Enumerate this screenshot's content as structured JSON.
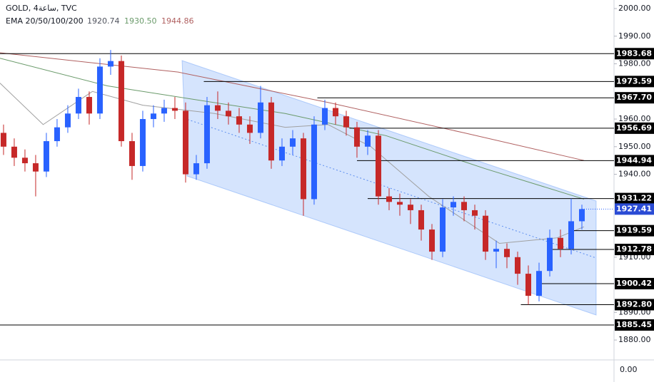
{
  "chart_data": {
    "type": "candlestick",
    "symbol_title": "GOLD, 4ساعة, TVC",
    "indicator": "EMA 20/50/100/200",
    "xlim": [
      -0.33,
      57
    ],
    "ylim": [
      1872.8,
      2003.1
    ],
    "yticks": [
      {
        "value": 2000,
        "label": "2000.00"
      },
      {
        "value": 1990,
        "label": "1990.00"
      },
      {
        "value": 1980,
        "label": "1980.00"
      },
      {
        "value": 1960,
        "label": "1960.00"
      },
      {
        "value": 1950,
        "label": "1950.00"
      },
      {
        "value": 1940,
        "label": "1940.00"
      },
      {
        "value": 1910,
        "label": "1910.00"
      },
      {
        "value": 1890,
        "label": "1890.00"
      },
      {
        "value": 1880,
        "label": "1880.00"
      }
    ],
    "up_color": "#2962ff",
    "down_color": "#c62828",
    "candles": [
      [
        1955,
        1958,
        1947,
        1950
      ],
      [
        1950,
        1953,
        1943,
        1946
      ],
      [
        1946,
        1949,
        1941,
        1944
      ],
      [
        1944,
        1947,
        1932,
        1941
      ],
      [
        1941,
        1955,
        1939,
        1952
      ],
      [
        1952,
        1960,
        1950,
        1957
      ],
      [
        1957,
        1965,
        1955,
        1962
      ],
      [
        1962,
        1971,
        1960,
        1968
      ],
      [
        1968,
        1970,
        1958,
        1962
      ],
      [
        1962,
        1982,
        1960,
        1979
      ],
      [
        1979,
        1985,
        1976,
        1981
      ],
      [
        1981,
        1983,
        1950,
        1952
      ],
      [
        1952,
        1955,
        1938,
        1943
      ],
      [
        1943,
        1963,
        1941,
        1960
      ],
      [
        1960,
        1965,
        1957,
        1962
      ],
      [
        1962,
        1967,
        1959,
        1964
      ],
      [
        1964,
        1968,
        1960,
        1963
      ],
      [
        1963,
        1966,
        1937,
        1940
      ],
      [
        1940,
        1947,
        1938,
        1944
      ],
      [
        1944,
        1968,
        1942,
        1965
      ],
      [
        1965,
        1970,
        1960,
        1963
      ],
      [
        1963,
        1966,
        1958,
        1961
      ],
      [
        1961,
        1964,
        1955,
        1958
      ],
      [
        1958,
        1961,
        1951,
        1955
      ],
      [
        1955,
        1972,
        1953,
        1966
      ],
      [
        1966,
        1968,
        1942,
        1945
      ],
      [
        1945,
        1953,
        1943,
        1950
      ],
      [
        1950,
        1956,
        1947,
        1953
      ],
      [
        1953,
        1955,
        1925,
        1931
      ],
      [
        1931,
        1961,
        1929,
        1958
      ],
      [
        1958,
        1967,
        1956,
        1964
      ],
      [
        1964,
        1966,
        1958,
        1961
      ],
      [
        1961,
        1963,
        1954,
        1957
      ],
      [
        1957,
        1959,
        1946,
        1950
      ],
      [
        1950,
        1956,
        1947,
        1954
      ],
      [
        1954,
        1956,
        1929,
        1932
      ],
      [
        1932,
        1935,
        1927,
        1930
      ],
      [
        1930,
        1933,
        1925,
        1929
      ],
      [
        1929,
        1931,
        1922,
        1927
      ],
      [
        1927,
        1929,
        1916,
        1920
      ],
      [
        1920,
        1922,
        1909,
        1912
      ],
      [
        1912,
        1931,
        1910,
        1928
      ],
      [
        1928,
        1932,
        1925,
        1930
      ],
      [
        1930,
        1932,
        1923,
        1927
      ],
      [
        1927,
        1929,
        1920,
        1925
      ],
      [
        1925,
        1927,
        1909,
        1912
      ],
      [
        1912,
        1916,
        1906,
        1913
      ],
      [
        1913,
        1915,
        1906,
        1910
      ],
      [
        1910,
        1912,
        1900,
        1904
      ],
      [
        1904,
        1907,
        1892.8,
        1896
      ],
      [
        1896,
        1908,
        1894,
        1905
      ],
      [
        1905,
        1920,
        1903,
        1917
      ],
      [
        1917,
        1920,
        1910,
        1913
      ],
      [
        1913,
        1931.2,
        1911,
        1923
      ],
      [
        1923,
        1929,
        1920,
        1927.41
      ]
    ],
    "ema": [
      {
        "color": "#a0a0a0",
        "last": {
          "value": 1920.74,
          "label": "1920.74"
        },
        "x": [
          -0.33,
          3.7,
          8.3,
          13,
          19.7,
          26.3,
          30.3,
          34.3,
          39.7,
          46.3,
          51.7,
          54.2
        ],
        "values": [
          1973,
          1958,
          1970,
          1965,
          1962,
          1957,
          1958,
          1950,
          1932,
          1915,
          1917,
          1921
        ]
      },
      {
        "color": "#6a9a6a",
        "last": {
          "value": 1930.5,
          "label": "1930.50"
        },
        "x": [
          -0.33,
          9.7,
          16.3,
          26.3,
          35.7,
          45,
          54.2
        ],
        "values": [
          1982,
          1972,
          1968,
          1962,
          1954,
          1942,
          1931
        ]
      },
      {
        "color": "#b06060",
        "last": {
          "value": 1944.86,
          "label": "1944.86"
        },
        "x": [
          -0.33,
          16.3,
          30.3,
          43,
          54.2
        ],
        "values": [
          1984,
          1977,
          1966,
          1955,
          1945
        ]
      }
    ],
    "levels": [
      {
        "value": 1983.68,
        "label": "1983.68",
        "start": -0.33
      },
      {
        "value": 1973.59,
        "label": "1973.59",
        "start": 18.7
      },
      {
        "value": 1967.7,
        "label": "1967.70",
        "start": 29.3
      },
      {
        "value": 1956.69,
        "label": "1956.69",
        "start": 32.3
      },
      {
        "value": 1944.94,
        "label": "1944.94",
        "start": 33
      },
      {
        "value": 1931.22,
        "label": "1931.22",
        "start": 34
      },
      {
        "value": 1919.59,
        "label": "1919.59",
        "start": 53
      },
      {
        "value": 1912.78,
        "label": "1912.78",
        "start": 51
      },
      {
        "value": 1900.42,
        "label": "1900.42",
        "start": 50
      },
      {
        "value": 1892.8,
        "label": "1892.80",
        "start": 48.3
      },
      {
        "value": 1885.45,
        "label": "1885.45",
        "start": -0.33
      }
    ],
    "last_price": {
      "value": 1927.41,
      "label": "1927.41"
    },
    "pane_label": "0.00"
  }
}
